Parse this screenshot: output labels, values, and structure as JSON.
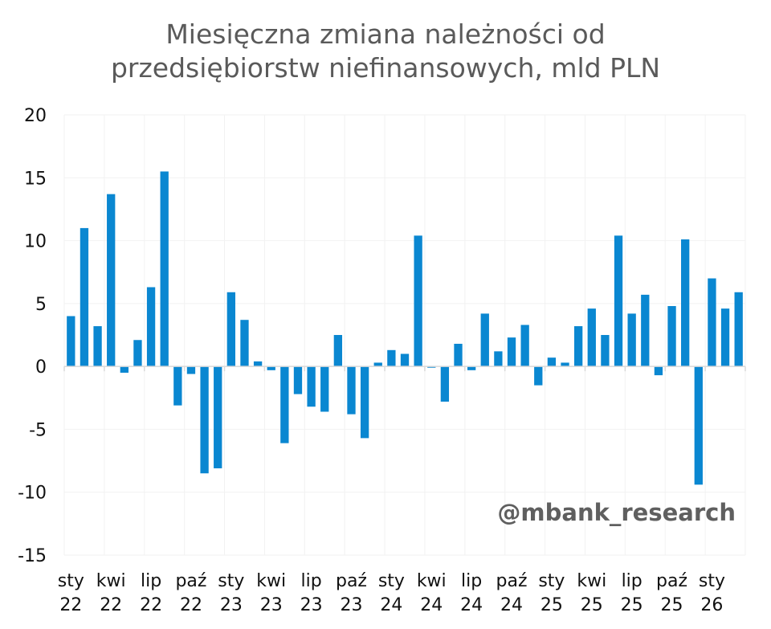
{
  "chart_data": {
    "type": "bar",
    "title_line1": "Miesięczna zmiana należności od",
    "title_line2": "przedsiębiorstw niefinansowych, mld PLN",
    "xlabel": "",
    "ylabel": "",
    "ylim": [
      -15,
      20
    ],
    "yticks": [
      20,
      15,
      10,
      5,
      0,
      -5,
      -10,
      -15
    ],
    "x_tick_labels": [
      [
        "sty",
        "22"
      ],
      [
        "kwi",
        "22"
      ],
      [
        "lip",
        "22"
      ],
      [
        "paź",
        "22"
      ],
      [
        "sty",
        "23"
      ],
      [
        "kwi",
        "23"
      ],
      [
        "lip",
        "23"
      ],
      [
        "paź",
        "23"
      ],
      [
        "sty",
        "24"
      ],
      [
        "kwi",
        "24"
      ],
      [
        "lip",
        "24"
      ],
      [
        "paź",
        "24"
      ],
      [
        "sty",
        "25"
      ],
      [
        "kwi",
        "25"
      ],
      [
        "lip",
        "25"
      ],
      [
        "paź",
        "25"
      ],
      [
        "sty",
        "26"
      ]
    ],
    "tick_every": 3,
    "series": [
      {
        "name": "Miesięczna zmiana należności",
        "color": "#0a87d1",
        "values": [
          4.0,
          11.0,
          3.2,
          13.7,
          -0.5,
          2.1,
          6.3,
          15.5,
          -3.1,
          -0.6,
          -8.5,
          -8.1,
          5.9,
          3.7,
          0.4,
          -0.3,
          -6.1,
          -2.2,
          -3.2,
          -3.6,
          2.5,
          -3.8,
          -5.7,
          0.3,
          1.3,
          1.0,
          10.4,
          -0.1,
          -2.8,
          1.8,
          -0.3,
          4.2,
          1.2,
          2.3,
          3.3,
          -1.5,
          0.7,
          0.3,
          3.2,
          4.6,
          2.5,
          10.4,
          4.2,
          5.7,
          -0.7,
          4.8,
          10.1,
          -9.4,
          7.0,
          4.6,
          5.9
        ]
      }
    ],
    "grid": true,
    "gridline_color": "#f2f2f2",
    "axis_color": "#d9d9d9"
  },
  "watermark": "@mbank_research"
}
